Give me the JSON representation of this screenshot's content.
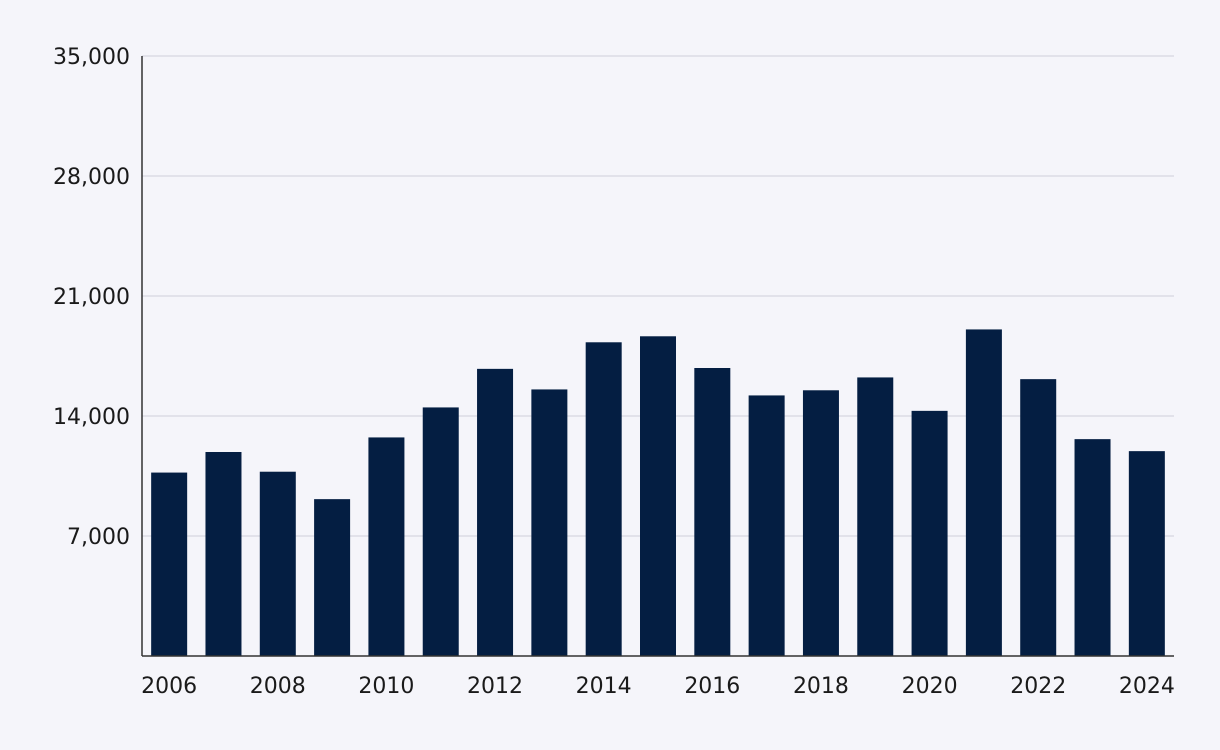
{
  "colors": {
    "background": "#f5f5fa",
    "bar": "#041e42",
    "grid": "#d8d8e0",
    "axis": "#333333"
  },
  "chart_data": {
    "type": "bar",
    "title": "",
    "xlabel": "",
    "ylabel": "",
    "categories": [
      "2006",
      "2007",
      "2008",
      "2009",
      "2010",
      "2011",
      "2012",
      "2013",
      "2014",
      "2015",
      "2016",
      "2017",
      "2018",
      "2019",
      "2020",
      "2021",
      "2022",
      "2023",
      "2024"
    ],
    "values": [
      10700,
      11900,
      10750,
      9150,
      12750,
      14500,
      16750,
      15550,
      18300,
      18650,
      16800,
      15200,
      15500,
      16250,
      14300,
      19050,
      16150,
      12650,
      11950
    ],
    "x_tick_labels": [
      "2006",
      "2008",
      "2010",
      "2012",
      "2014",
      "2016",
      "2018",
      "2020",
      "2022",
      "2024"
    ],
    "y_ticks": [
      7000,
      14000,
      21000,
      28000,
      35000
    ],
    "y_tick_labels": [
      "7,000",
      "14,000",
      "21,000",
      "28,000",
      "35,000"
    ],
    "ylim": [
      0,
      35000
    ],
    "grid": true,
    "legend": "none"
  }
}
